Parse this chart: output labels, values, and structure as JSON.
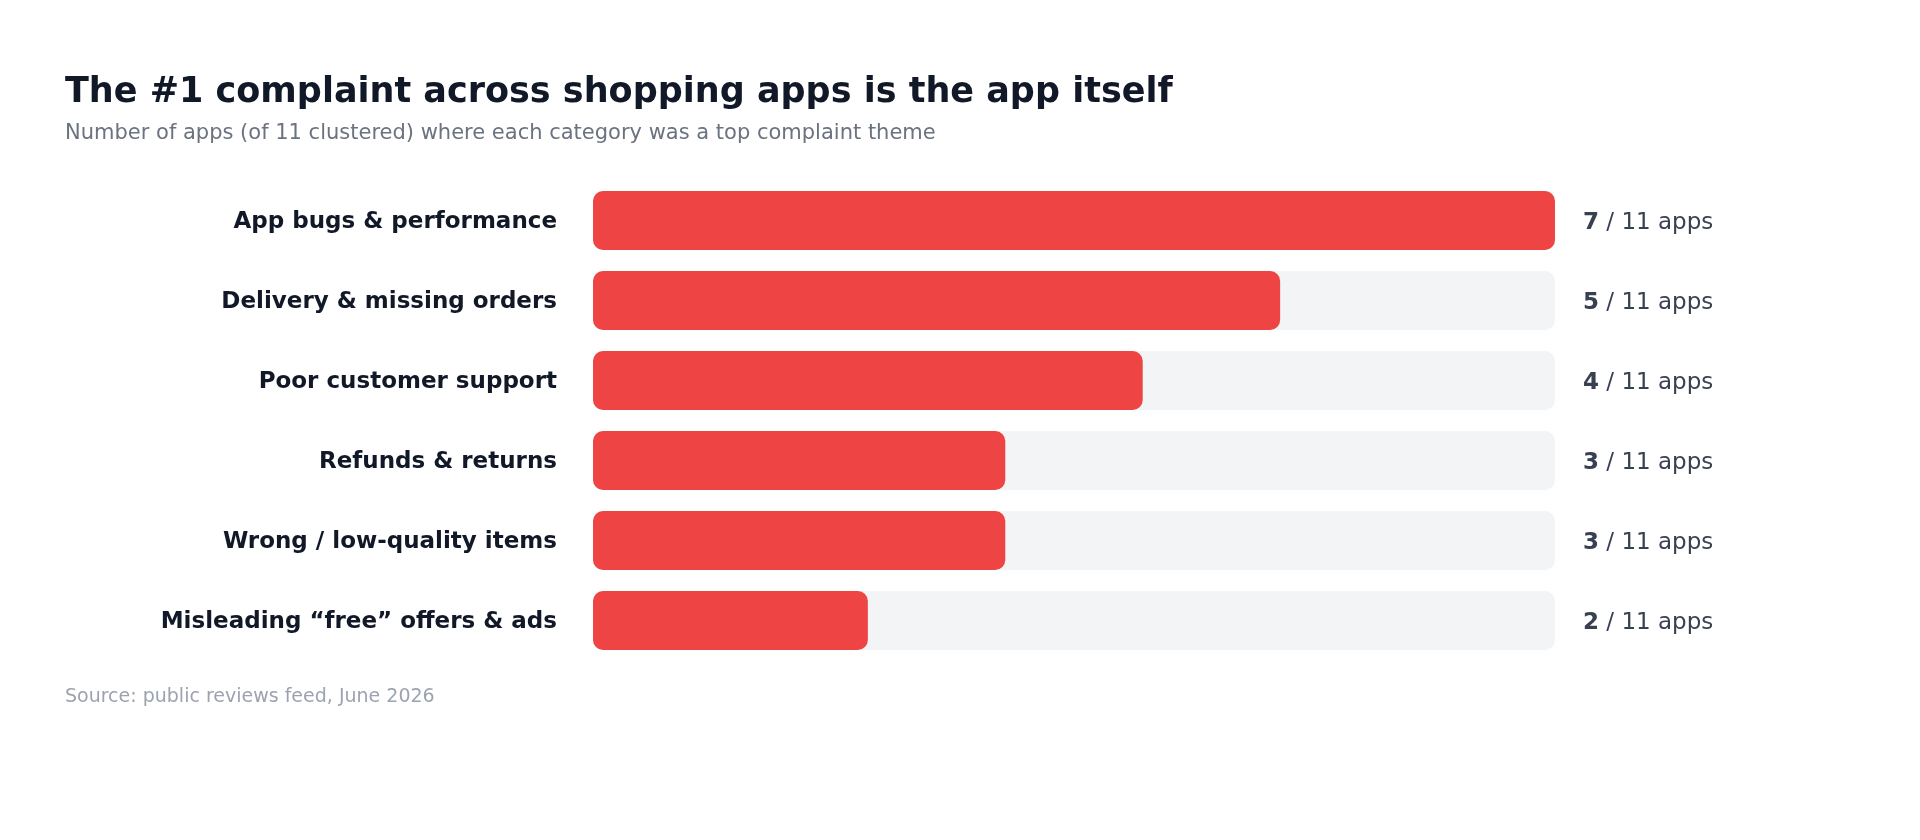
{
  "chart_data": {
    "type": "bar",
    "orientation": "horizontal",
    "title": "The #1 complaint across shopping apps is the app itself",
    "subtitle": "Number of apps (of 11 clustered) where each category was a top complaint theme",
    "categories": [
      "App bugs & performance",
      "Delivery & missing orders",
      "Poor customer support",
      "Refunds & returns",
      "Wrong / low-quality items",
      "Misleading “free” offers & ads"
    ],
    "values": [
      7,
      5,
      4,
      3,
      3,
      2
    ],
    "value_labels": [
      "7 / 11 apps",
      "5 / 11 apps",
      "4 / 11 apps",
      "3 / 11 apps",
      "3 / 11 apps",
      "2 / 11 apps"
    ],
    "color": "#ef4444",
    "xlim": [
      0,
      7
    ],
    "tick_labels": "y",
    "grid": false,
    "legend": false,
    "annotations": [
      "Source: public reviews feed, June 2026"
    ]
  }
}
